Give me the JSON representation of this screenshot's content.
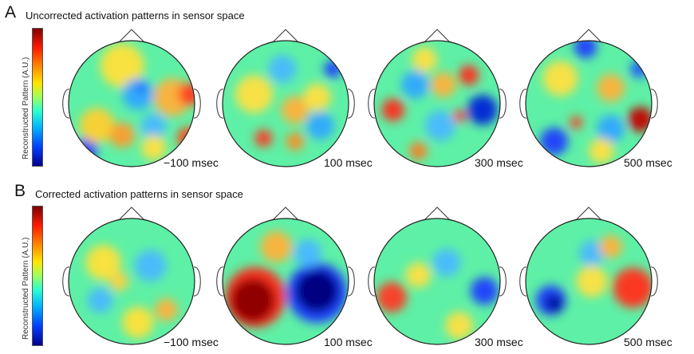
{
  "panels": [
    {
      "letter": "A",
      "title": "Uncorrected activation patterns in sensor space",
      "colorbar_label": "Reconstructed Pattern (A.U.)",
      "heads": [
        {
          "time": "−100 msec",
          "blobs": [
            {
              "c": "#ffe23a",
              "u": -0.15,
              "v": -0.6,
              "r": 0.35
            },
            {
              "c": "#ffb13a",
              "u": 0.65,
              "v": -0.1,
              "r": 0.3
            },
            {
              "c": "#ff3a22",
              "u": 0.92,
              "v": -0.15,
              "r": 0.18
            },
            {
              "c": "#ff4a1e",
              "u": 0.9,
              "v": 0.55,
              "r": 0.18
            },
            {
              "c": "#1a3cff",
              "u": -0.72,
              "v": 0.72,
              "r": 0.18
            },
            {
              "c": "#2fa8ff",
              "u": 0.1,
              "v": -0.15,
              "r": 0.25
            },
            {
              "c": "#1a55ff",
              "u": 0.15,
              "v": -0.25,
              "r": 0.08
            },
            {
              "c": "#ffcf30",
              "u": -0.55,
              "v": 0.35,
              "r": 0.28
            },
            {
              "c": "#ff9c2a",
              "u": -0.15,
              "v": 0.5,
              "r": 0.2
            },
            {
              "c": "#49b8ff",
              "u": 0.35,
              "v": 0.35,
              "r": 0.2
            },
            {
              "c": "#ffe040",
              "u": 0.35,
              "v": 0.7,
              "r": 0.2
            }
          ]
        },
        {
          "time": "100 msec",
          "blobs": [
            {
              "c": "#1a3cff",
              "u": 0.75,
              "v": -0.55,
              "r": 0.14
            },
            {
              "c": "#ffb13a",
              "u": 0.15,
              "v": 0.1,
              "r": 0.22
            },
            {
              "c": "#ff3a22",
              "u": -0.35,
              "v": 0.55,
              "r": 0.14
            },
            {
              "c": "#ff8a22",
              "u": 0.15,
              "v": 0.6,
              "r": 0.14
            },
            {
              "c": "#2fa8ff",
              "u": 0.55,
              "v": 0.35,
              "r": 0.22
            },
            {
              "c": "#ffe040",
              "u": -0.5,
              "v": -0.15,
              "r": 0.3
            },
            {
              "c": "#49b8ff",
              "u": -0.05,
              "v": -0.55,
              "r": 0.22
            },
            {
              "c": "#ffe040",
              "u": 0.5,
              "v": -0.1,
              "r": 0.22
            }
          ]
        },
        {
          "time": "300 msec",
          "blobs": [
            {
              "c": "#0022d8",
              "u": 0.72,
              "v": 0.1,
              "r": 0.24
            },
            {
              "c": "#ff2a1a",
              "u": -0.7,
              "v": 0.1,
              "r": 0.18
            },
            {
              "c": "#ff2a1a",
              "u": 0.5,
              "v": -0.45,
              "r": 0.16
            },
            {
              "c": "#ff2a1a",
              "u": 0.35,
              "v": 0.2,
              "r": 0.1
            },
            {
              "c": "#2fa8ff",
              "u": -0.35,
              "v": -0.3,
              "r": 0.22
            },
            {
              "c": "#ffb13a",
              "u": 0.1,
              "v": -0.3,
              "r": 0.2
            },
            {
              "c": "#ff7a22",
              "u": -0.3,
              "v": 0.75,
              "r": 0.14
            },
            {
              "c": "#49b8ff",
              "u": 0.05,
              "v": 0.35,
              "r": 0.24
            },
            {
              "c": "#ffe040",
              "u": -0.2,
              "v": -0.7,
              "r": 0.2
            }
          ]
        },
        {
          "time": "500 msec",
          "blobs": [
            {
              "c": "#c40000",
              "u": 0.82,
              "v": 0.25,
              "r": 0.2
            },
            {
              "c": "#ff3a22",
              "u": -0.2,
              "v": 0.3,
              "r": 0.1
            },
            {
              "c": "#1a3cff",
              "u": -0.55,
              "v": 0.6,
              "r": 0.22
            },
            {
              "c": "#1a3cff",
              "u": -0.05,
              "v": -0.9,
              "r": 0.18
            },
            {
              "c": "#1a55ff",
              "u": 0.8,
              "v": -0.55,
              "r": 0.14
            },
            {
              "c": "#ffe040",
              "u": -0.45,
              "v": -0.4,
              "r": 0.28
            },
            {
              "c": "#ffb13a",
              "u": 0.35,
              "v": -0.25,
              "r": 0.22
            },
            {
              "c": "#2fa8ff",
              "u": 0.35,
              "v": 0.4,
              "r": 0.22
            },
            {
              "c": "#ffe040",
              "u": 0.2,
              "v": 0.75,
              "r": 0.2
            }
          ]
        }
      ]
    },
    {
      "letter": "B",
      "title": "Corrected activation patterns in sensor space",
      "colorbar_label": "Reconstructed Pattern (A.U.)",
      "heads": [
        {
          "time": "−100 msec",
          "blobs": [
            {
              "c": "#ffe23a",
              "u": -0.45,
              "v": -0.3,
              "r": 0.28
            },
            {
              "c": "#ffe23a",
              "u": 0.1,
              "v": 0.65,
              "r": 0.25
            },
            {
              "c": "#ffb13a",
              "u": 0.55,
              "v": 0.45,
              "r": 0.18
            },
            {
              "c": "#49b8ff",
              "u": 0.3,
              "v": -0.25,
              "r": 0.25
            },
            {
              "c": "#49b8ff",
              "u": -0.5,
              "v": 0.3,
              "r": 0.2
            },
            {
              "c": "#ffd040",
              "u": -0.2,
              "v": 0.0,
              "r": 0.15
            }
          ]
        },
        {
          "time": "100 msec",
          "blobs": [
            {
              "c": "#ff2a1a",
              "u": -0.48,
              "v": 0.25,
              "r": 0.48
            },
            {
              "c": "#8a0000",
              "u": -0.52,
              "v": 0.3,
              "r": 0.35
            },
            {
              "c": "#1a3cff",
              "u": 0.5,
              "v": 0.18,
              "r": 0.48
            },
            {
              "c": "#00007a",
              "u": 0.5,
              "v": 0.15,
              "r": 0.34
            },
            {
              "c": "#ffb13a",
              "u": -0.15,
              "v": -0.55,
              "r": 0.25
            },
            {
              "c": "#49b8ff",
              "u": 0.35,
              "v": -0.45,
              "r": 0.22
            }
          ]
        },
        {
          "time": "300 msec",
          "blobs": [
            {
              "c": "#ff3a22",
              "u": -0.72,
              "v": 0.25,
              "r": 0.24
            },
            {
              "c": "#1a3cff",
              "u": 0.75,
              "v": 0.15,
              "r": 0.22
            },
            {
              "c": "#ffe040",
              "u": -0.3,
              "v": -0.1,
              "r": 0.2
            },
            {
              "c": "#ffe040",
              "u": 0.35,
              "v": 0.7,
              "r": 0.22
            },
            {
              "c": "#49b8ff",
              "u": 0.15,
              "v": -0.3,
              "r": 0.22
            }
          ]
        },
        {
          "time": "500 msec",
          "blobs": [
            {
              "c": "#b00000",
              "u": 0.75,
              "v": 0.12,
              "r": 0.26
            },
            {
              "c": "#ff3a22",
              "u": 0.7,
              "v": 0.1,
              "r": 0.32
            },
            {
              "c": "#1a3cff",
              "u": -0.6,
              "v": 0.3,
              "r": 0.24
            },
            {
              "c": "#00109a",
              "u": -0.55,
              "v": 0.35,
              "r": 0.14
            },
            {
              "c": "#ffe040",
              "u": 0.05,
              "v": 0.0,
              "r": 0.25
            },
            {
              "c": "#49b8ff",
              "u": 0.05,
              "v": -0.45,
              "r": 0.2
            },
            {
              "c": "#ffb13a",
              "u": 0.35,
              "v": -0.55,
              "r": 0.18
            }
          ]
        }
      ]
    }
  ]
}
